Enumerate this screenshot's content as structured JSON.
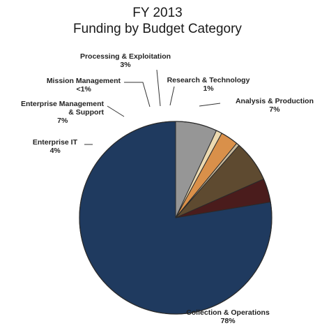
{
  "chart_data": {
    "type": "pie",
    "title": "FY 2013",
    "subtitle": "Funding by Budget Category",
    "slices": [
      {
        "name": "Collection & Operations",
        "label_lines": [
          "Collection & Operations"
        ],
        "value": 78,
        "pct_label": "78%",
        "color": "#1f3a5f"
      },
      {
        "name": "Enterprise IT",
        "label_lines": [
          "Enterprise IT"
        ],
        "value": 4,
        "pct_label": "4%",
        "color": "#4a1c1c"
      },
      {
        "name": "Enterprise Management & Support",
        "label_lines": [
          "Enterprise Management",
          "& Support"
        ],
        "value": 7,
        "pct_label": "7%",
        "color": "#5e4a30"
      },
      {
        "name": "Mission Management",
        "label_lines": [
          "Mission Management"
        ],
        "value": 0.5,
        "pct_label": "<1%",
        "color": "#c9b99a"
      },
      {
        "name": "Processing & Exploitation",
        "label_lines": [
          "Processing & Exploitation"
        ],
        "value": 3,
        "pct_label": "3%",
        "color": "#d9904a"
      },
      {
        "name": "Research & Technology",
        "label_lines": [
          "Research & Technology"
        ],
        "value": 1,
        "pct_label": "1%",
        "color": "#ecd9b0"
      },
      {
        "name": "Analysis & Production",
        "label_lines": [
          "Analysis & Production"
        ],
        "value": 7,
        "pct_label": "7%",
        "color": "#969696"
      }
    ]
  }
}
